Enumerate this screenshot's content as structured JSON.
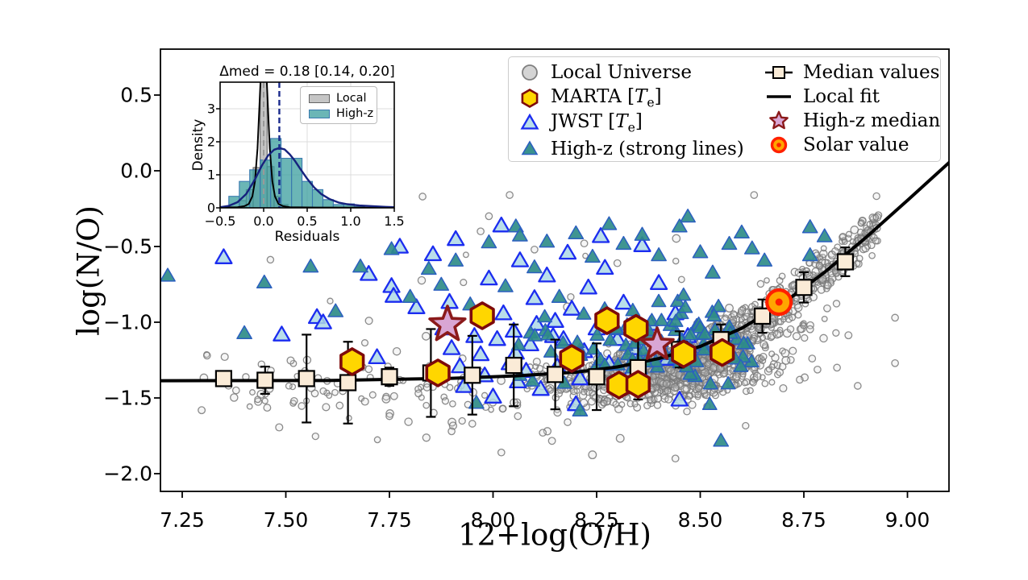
{
  "chart_data": {
    "type": "scatter",
    "title": "",
    "axes": {
      "xlabel": "12+log(O/H)",
      "ylabel": "log(N/O)",
      "xlim": [
        7.197,
        9.103
      ],
      "ylim": [
        -2.12,
        0.8
      ],
      "x_tick_vals": [
        7.25,
        7.5,
        7.75,
        8.0,
        8.25,
        8.5,
        8.75,
        9.0
      ],
      "x_ticks": [
        "7.25",
        "7.50",
        "7.75",
        "8.00",
        "8.25",
        "8.50",
        "8.75",
        "9.00"
      ],
      "y_tick_vals": [
        0.5,
        0.0,
        -0.5,
        -1.0,
        -1.5,
        -2.0
      ],
      "y_ticks": [
        "0.5",
        "0.0",
        "−0.5",
        "−1.0",
        "−1.5",
        "−2.0"
      ],
      "grid": false
    },
    "colors": {
      "local_fill": "rgba(220,220,220,0.25)",
      "local_edge": "rgba(120,120,120,0.85)",
      "jwst_fill": "rgba(173,216,230,0.85)",
      "jwst_edge": "#1b2cf0",
      "teal_fill": "rgba(47,140,136,0.92)",
      "teal_edge": "#2b5fc0",
      "marta_fill": "#FFD600",
      "marta_edge": "#7E0A0A",
      "median_fill": "#FAEBD7",
      "median_edge": "#000000",
      "fit_line": "#000000",
      "star_fill": "#D9A6D4",
      "star_edge": "#8B1A1A",
      "solar_fill": "#FFA500",
      "solar_edge": "#FF2000",
      "hist_local_fill": "rgba(150,150,150,0.55)",
      "hist_local_edge": "rgba(90,90,90,0.9)",
      "hist_highz_fill": "rgba(58,157,157,0.75)",
      "hist_highz_edge": "#3a7ab0",
      "kde_local": "#000000",
      "kde_highz": "#16227e",
      "median_dash": "#1a2a8c",
      "zero_dash": "#999999"
    },
    "legend": {
      "col1": [
        {
          "key": "local",
          "label": "Local Universe"
        },
        {
          "key": "marta",
          "pre": "MARTA [",
          "sym": "T",
          "sub": "e",
          "post": "]"
        },
        {
          "key": "jwst",
          "pre": "JWST [",
          "sym": "T",
          "sub": "e",
          "post": "]"
        },
        {
          "key": "highz",
          "label": "High-z (strong lines)"
        }
      ],
      "col2": [
        {
          "key": "median",
          "label": "Median values"
        },
        {
          "key": "fit",
          "label": "Local fit"
        },
        {
          "key": "highz_median",
          "label": "High-z median"
        },
        {
          "key": "solar",
          "label": "Solar value"
        }
      ]
    },
    "series": {
      "local_universe": {
        "label": "Local Universe",
        "gen": {
          "seed": 20240614,
          "components": [
            {
              "kind": "gauss",
              "n": 850,
              "cx": 8.42,
              "cy": -1.33,
              "sx": 0.125,
              "sy": 0.095,
              "rho": 0.3
            },
            {
              "kind": "ridge",
              "n": 430,
              "x0": 8.5,
              "x1": 8.93,
              "sy": 0.075
            },
            {
              "kind": "gauss",
              "n": 120,
              "cx": 8.62,
              "cy": -1.07,
              "sx": 0.07,
              "sy": 0.09,
              "rho": 0.5
            },
            {
              "kind": "band",
              "n": 130,
              "x0": 7.28,
              "x1": 8.32,
              "cy": -1.44,
              "sy": 0.12
            },
            {
              "kind": "uniform",
              "n": 26,
              "x0": 7.35,
              "x1": 8.62,
              "y0": -1.88,
              "y1": -0.3
            }
          ]
        },
        "points": [
          [
            7.31,
            -1.22
          ],
          [
            7.38,
            -1.45
          ],
          [
            7.44,
            -1.4
          ],
          [
            7.52,
            -1.52
          ],
          [
            7.57,
            -1.47
          ],
          [
            7.63,
            -1.55
          ],
          [
            7.7,
            -1.31
          ],
          [
            7.75,
            -1.62
          ],
          [
            7.82,
            -1.47
          ],
          [
            7.83,
            -0.17
          ],
          [
            7.9,
            -1.72
          ],
          [
            7.95,
            -1.67
          ],
          [
            7.97,
            -0.4
          ],
          [
            7.99,
            -0.3
          ],
          [
            8.02,
            -1.86
          ],
          [
            8.04,
            -0.16
          ],
          [
            8.06,
            -1.62
          ],
          [
            8.1,
            -0.52
          ],
          [
            8.12,
            -1.73
          ],
          [
            8.18,
            -1.66
          ],
          [
            8.22,
            -0.48
          ],
          [
            8.3,
            -0.61
          ],
          [
            8.44,
            -1.9
          ],
          [
            8.63,
            -0.16
          ],
          [
            8.74,
            -1.38
          ],
          [
            8.77,
            -1.24
          ],
          [
            8.83,
            -1.3
          ],
          [
            8.88,
            -1.42
          ],
          [
            8.97,
            -0.97
          ],
          [
            8.97,
            -1.27
          ]
        ]
      },
      "jwst": {
        "label": "JWST [Te]",
        "points": [
          [
            7.35,
            -0.58
          ],
          [
            7.49,
            -1.09
          ],
          [
            7.575,
            -0.975
          ],
          [
            7.59,
            -1.01
          ],
          [
            7.7,
            -0.69
          ],
          [
            7.72,
            -1.24
          ],
          [
            7.755,
            -0.77
          ],
          [
            7.76,
            -0.835
          ],
          [
            7.775,
            -0.51
          ],
          [
            7.815,
            -0.91
          ],
          [
            7.855,
            -0.56
          ],
          [
            7.88,
            -1.05
          ],
          [
            7.895,
            -0.875
          ],
          [
            7.9,
            -1.18
          ],
          [
            7.91,
            -0.46
          ],
          [
            7.92,
            -1.3
          ],
          [
            7.93,
            -1.43
          ],
          [
            7.955,
            -1.1
          ],
          [
            7.97,
            -1.22
          ],
          [
            7.98,
            -1.36
          ],
          [
            7.99,
            -0.72
          ],
          [
            8.0,
            -1.5
          ],
          [
            8.01,
            -1.12
          ],
          [
            8.02,
            -0.37
          ],
          [
            8.025,
            -0.95
          ],
          [
            8.04,
            -1.28
          ],
          [
            8.05,
            -1.065
          ],
          [
            8.055,
            -1.21
          ],
          [
            8.06,
            -1.4
          ],
          [
            8.065,
            -0.6
          ],
          [
            8.08,
            -1.33
          ],
          [
            8.09,
            -1.155
          ],
          [
            8.1,
            -0.85
          ],
          [
            8.105,
            -1.02
          ],
          [
            8.115,
            -1.45
          ],
          [
            8.13,
            -0.7
          ],
          [
            8.145,
            -1.1
          ],
          [
            8.15,
            -1.0
          ],
          [
            8.155,
            -1.3
          ],
          [
            8.17,
            -1.12
          ],
          [
            8.18,
            -0.55
          ],
          [
            8.19,
            -0.92
          ],
          [
            8.2,
            -1.55
          ],
          [
            8.21,
            -1.38
          ],
          [
            8.22,
            -1.2
          ],
          [
            8.23,
            -0.78
          ],
          [
            8.25,
            -1.05
          ],
          [
            8.26,
            -0.44
          ],
          [
            8.27,
            -0.65
          ],
          [
            8.28,
            -1.28
          ],
          [
            8.3,
            -1.12
          ],
          [
            8.315,
            -0.88
          ],
          [
            8.33,
            -1.35
          ],
          [
            8.34,
            -1.18
          ],
          [
            8.36,
            -0.5
          ],
          [
            8.38,
            -1.02
          ],
          [
            8.4,
            -0.75
          ],
          [
            8.42,
            -1.25
          ],
          [
            8.44,
            -0.95
          ],
          [
            8.45,
            -1.52
          ],
          [
            8.47,
            -1.1
          ]
        ]
      },
      "highz_strong": {
        "label": "High-z (strong lines)",
        "gen": {
          "seed": 777,
          "components": [
            {
              "kind": "gauss",
              "n": 85,
              "cx": 8.44,
              "cy": -1.16,
              "sx": 0.105,
              "sy": 0.155,
              "rho": 0.15
            },
            {
              "kind": "gauss",
              "n": 18,
              "cx": 8.21,
              "cy": -1.22,
              "sx": 0.11,
              "sy": 0.17,
              "rho": 0
            }
          ]
        },
        "points": [
          [
            7.215,
            -0.7
          ],
          [
            7.4,
            -1.08
          ],
          [
            7.448,
            -0.745
          ],
          [
            7.56,
            -0.64
          ],
          [
            7.62,
            -0.935
          ],
          [
            7.68,
            -0.64
          ],
          [
            7.755,
            -0.525
          ],
          [
            7.8,
            -0.84
          ],
          [
            7.845,
            -0.655
          ],
          [
            7.875,
            -0.76
          ],
          [
            7.91,
            -0.6
          ],
          [
            7.945,
            -0.89
          ],
          [
            7.99,
            -0.48
          ],
          [
            8.03,
            -0.77
          ],
          [
            8.055,
            -0.375
          ],
          [
            8.065,
            -0.435
          ],
          [
            8.1,
            -0.645
          ],
          [
            8.13,
            -0.475
          ],
          [
            8.16,
            -0.84
          ],
          [
            8.2,
            -0.42
          ],
          [
            8.24,
            -0.575
          ],
          [
            8.28,
            -0.36
          ],
          [
            8.315,
            -0.49
          ],
          [
            8.36,
            -0.43
          ],
          [
            8.4,
            -0.565
          ],
          [
            8.45,
            -0.375
          ],
          [
            8.47,
            -0.31
          ],
          [
            8.5,
            -0.545
          ],
          [
            8.53,
            -0.68
          ],
          [
            8.57,
            -0.49
          ],
          [
            8.6,
            -0.415
          ],
          [
            8.625,
            -0.52
          ],
          [
            8.655,
            -0.6
          ],
          [
            8.765,
            -0.38
          ],
          [
            8.8,
            -0.44
          ],
          [
            8.765,
            -0.565
          ],
          [
            8.55,
            -1.79
          ],
          [
            8.21,
            -1.59
          ],
          [
            7.96,
            -1.54
          ]
        ]
      },
      "marta": {
        "label": "MARTA [Te]",
        "points": [
          [
            7.66,
            -1.26
          ],
          [
            7.867,
            -1.335
          ],
          [
            7.974,
            -0.957
          ],
          [
            8.19,
            -1.24
          ],
          [
            8.275,
            -0.99
          ],
          [
            8.345,
            -1.04
          ],
          [
            8.304,
            -1.415
          ],
          [
            8.35,
            -1.41
          ],
          [
            8.46,
            -1.21
          ],
          [
            8.553,
            -1.2
          ]
        ]
      },
      "medians": {
        "label": "Median values",
        "x": [
          7.35,
          7.45,
          7.55,
          7.65,
          7.75,
          7.85,
          7.95,
          8.05,
          8.15,
          8.25,
          8.35,
          8.45,
          8.55,
          8.65,
          8.75,
          8.85
        ],
        "y": [
          -1.372,
          -1.383,
          -1.372,
          -1.399,
          -1.36,
          -1.335,
          -1.35,
          -1.285,
          -1.345,
          -1.36,
          -1.3,
          -1.18,
          -1.115,
          -0.96,
          -0.77,
          -0.601
        ],
        "err": [
          0.045,
          0.09,
          0.29,
          0.27,
          0.06,
          0.29,
          0.26,
          0.27,
          0.23,
          0.22,
          0.21,
          0.12,
          0.1,
          0.11,
          0.1,
          0.095
        ]
      },
      "local_fit": {
        "label": "Local fit",
        "points": [
          [
            7.197,
            -1.386
          ],
          [
            7.6,
            -1.385
          ],
          [
            7.9,
            -1.37
          ],
          [
            8.05,
            -1.355
          ],
          [
            8.2,
            -1.33
          ],
          [
            8.3,
            -1.295
          ],
          [
            8.4,
            -1.24
          ],
          [
            8.5,
            -1.16
          ],
          [
            8.6,
            -1.04
          ],
          [
            8.7,
            -0.875
          ],
          [
            8.8,
            -0.67
          ],
          [
            8.9,
            -0.44
          ],
          [
            9.0,
            -0.195
          ],
          [
            9.103,
            0.06
          ]
        ]
      },
      "highz_median": {
        "label": "High-z median",
        "points": [
          {
            "x": 7.89,
            "y": -1.016,
            "r": 23
          },
          {
            "x": 8.396,
            "y": -1.149,
            "r": 21
          }
        ]
      },
      "solar": {
        "label": "Solar value",
        "x": 8.69,
        "y": -0.867
      }
    },
    "inset": {
      "title": "Δmed = 0.18 [0.14, 0.20]",
      "xlabel": "Residuals",
      "ylabel": "Density",
      "xlim": [
        -0.5,
        1.5
      ],
      "ylim": [
        0,
        3.8
      ],
      "x_tick_vals": [
        -0.5,
        0.0,
        0.5,
        1.0,
        1.5
      ],
      "x_ticks": [
        "−0.5",
        "0.0",
        "0.5",
        "1.0",
        "1.5"
      ],
      "y_tick_vals": [
        0,
        1,
        2,
        3
      ],
      "y_ticks": [
        "0",
        "1",
        "2",
        "3"
      ],
      "median_line": 0.18,
      "zero_line": 0.0,
      "legend": [
        "Local",
        "High-z"
      ],
      "hist_local": {
        "start": -0.28,
        "width": 0.08,
        "heights": [
          0.22,
          0.55,
          1.22,
          4.3,
          1.25,
          0.35,
          0.1
        ]
      },
      "hist_highz": {
        "start": -0.4,
        "width": 0.12,
        "heights": [
          0.35,
          0.8,
          1.15,
          1.45,
          2.1,
          1.5,
          1.5,
          0.8,
          0.55,
          0.25,
          0.1,
          0.12,
          0.04
        ]
      },
      "kde_local": [
        [
          -0.5,
          0.01
        ],
        [
          -0.3,
          0.02
        ],
        [
          -0.22,
          0.05
        ],
        [
          -0.17,
          0.12
        ],
        [
          -0.13,
          0.35
        ],
        [
          -0.1,
          0.8
        ],
        [
          -0.07,
          1.8
        ],
        [
          -0.05,
          3.0
        ],
        [
          -0.03,
          4.2
        ],
        [
          0.0,
          4.8
        ],
        [
          0.03,
          4.2
        ],
        [
          0.05,
          3.0
        ],
        [
          0.07,
          1.8
        ],
        [
          0.1,
          0.8
        ],
        [
          0.13,
          0.35
        ],
        [
          0.17,
          0.12
        ],
        [
          0.22,
          0.05
        ],
        [
          0.3,
          0.02
        ],
        [
          0.6,
          0.01
        ],
        [
          1.5,
          0.005
        ]
      ],
      "kde_highz": [
        [
          -0.5,
          0.02
        ],
        [
          -0.4,
          0.06
        ],
        [
          -0.3,
          0.17
        ],
        [
          -0.2,
          0.42
        ],
        [
          -0.1,
          0.86
        ],
        [
          -0.02,
          1.28
        ],
        [
          0.05,
          1.58
        ],
        [
          0.12,
          1.76
        ],
        [
          0.18,
          1.81
        ],
        [
          0.24,
          1.77
        ],
        [
          0.3,
          1.62
        ],
        [
          0.36,
          1.42
        ],
        [
          0.42,
          1.18
        ],
        [
          0.5,
          0.88
        ],
        [
          0.58,
          0.62
        ],
        [
          0.66,
          0.42
        ],
        [
          0.76,
          0.26
        ],
        [
          0.86,
          0.16
        ],
        [
          0.96,
          0.11
        ],
        [
          1.1,
          0.07
        ],
        [
          1.25,
          0.05
        ],
        [
          1.4,
          0.03
        ],
        [
          1.5,
          0.02
        ]
      ]
    }
  }
}
